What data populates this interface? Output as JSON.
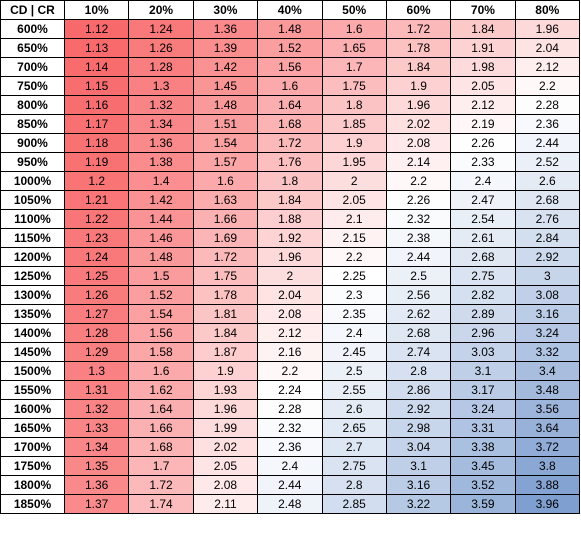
{
  "table": {
    "corner": "CD | CR",
    "columns": [
      "10%",
      "20%",
      "30%",
      "40%",
      "50%",
      "60%",
      "70%",
      "80%"
    ],
    "rows": [
      {
        "label": "600%",
        "values": [
          "1.12",
          "1.24",
          "1.36",
          "1.48",
          "1.6",
          "1.72",
          "1.84",
          "1.96"
        ]
      },
      {
        "label": "650%",
        "values": [
          "1.13",
          "1.26",
          "1.39",
          "1.52",
          "1.65",
          "1.78",
          "1.91",
          "2.04"
        ]
      },
      {
        "label": "700%",
        "values": [
          "1.14",
          "1.28",
          "1.42",
          "1.56",
          "1.7",
          "1.84",
          "1.98",
          "2.12"
        ]
      },
      {
        "label": "750%",
        "values": [
          "1.15",
          "1.3",
          "1.45",
          "1.6",
          "1.75",
          "1.9",
          "2.05",
          "2.2"
        ]
      },
      {
        "label": "800%",
        "values": [
          "1.16",
          "1.32",
          "1.48",
          "1.64",
          "1.8",
          "1.96",
          "2.12",
          "2.28"
        ]
      },
      {
        "label": "850%",
        "values": [
          "1.17",
          "1.34",
          "1.51",
          "1.68",
          "1.85",
          "2.02",
          "2.19",
          "2.36"
        ]
      },
      {
        "label": "900%",
        "values": [
          "1.18",
          "1.36",
          "1.54",
          "1.72",
          "1.9",
          "2.08",
          "2.26",
          "2.44"
        ]
      },
      {
        "label": "950%",
        "values": [
          "1.19",
          "1.38",
          "1.57",
          "1.76",
          "1.95",
          "2.14",
          "2.33",
          "2.52"
        ]
      },
      {
        "label": "1000%",
        "values": [
          "1.2",
          "1.4",
          "1.6",
          "1.8",
          "2",
          "2.2",
          "2.4",
          "2.6"
        ]
      },
      {
        "label": "1050%",
        "values": [
          "1.21",
          "1.42",
          "1.63",
          "1.84",
          "2.05",
          "2.26",
          "2.47",
          "2.68"
        ]
      },
      {
        "label": "1100%",
        "values": [
          "1.22",
          "1.44",
          "1.66",
          "1.88",
          "2.1",
          "2.32",
          "2.54",
          "2.76"
        ]
      },
      {
        "label": "1150%",
        "values": [
          "1.23",
          "1.46",
          "1.69",
          "1.92",
          "2.15",
          "2.38",
          "2.61",
          "2.84"
        ]
      },
      {
        "label": "1200%",
        "values": [
          "1.24",
          "1.48",
          "1.72",
          "1.96",
          "2.2",
          "2.44",
          "2.68",
          "2.92"
        ]
      },
      {
        "label": "1250%",
        "values": [
          "1.25",
          "1.5",
          "1.75",
          "2",
          "2.25",
          "2.5",
          "2.75",
          "3"
        ]
      },
      {
        "label": "1300%",
        "values": [
          "1.26",
          "1.52",
          "1.78",
          "2.04",
          "2.3",
          "2.56",
          "2.82",
          "3.08"
        ]
      },
      {
        "label": "1350%",
        "values": [
          "1.27",
          "1.54",
          "1.81",
          "2.08",
          "2.35",
          "2.62",
          "2.89",
          "3.16"
        ]
      },
      {
        "label": "1400%",
        "values": [
          "1.28",
          "1.56",
          "1.84",
          "2.12",
          "2.4",
          "2.68",
          "2.96",
          "3.24"
        ]
      },
      {
        "label": "1450%",
        "values": [
          "1.29",
          "1.58",
          "1.87",
          "2.16",
          "2.45",
          "2.74",
          "3.03",
          "3.32"
        ]
      },
      {
        "label": "1500%",
        "values": [
          "1.3",
          "1.6",
          "1.9",
          "2.2",
          "2.5",
          "2.8",
          "3.1",
          "3.4"
        ]
      },
      {
        "label": "1550%",
        "values": [
          "1.31",
          "1.62",
          "1.93",
          "2.24",
          "2.55",
          "2.86",
          "3.17",
          "3.48"
        ]
      },
      {
        "label": "1600%",
        "values": [
          "1.32",
          "1.64",
          "1.96",
          "2.28",
          "2.6",
          "2.92",
          "3.24",
          "3.56"
        ]
      },
      {
        "label": "1650%",
        "values": [
          "1.33",
          "1.66",
          "1.99",
          "2.32",
          "2.65",
          "2.98",
          "3.31",
          "3.64"
        ]
      },
      {
        "label": "1700%",
        "values": [
          "1.34",
          "1.68",
          "2.02",
          "2.36",
          "2.7",
          "3.04",
          "3.38",
          "3.72"
        ]
      },
      {
        "label": "1750%",
        "values": [
          "1.35",
          "1.7",
          "2.05",
          "2.4",
          "2.75",
          "3.1",
          "3.45",
          "3.8"
        ]
      },
      {
        "label": "1800%",
        "values": [
          "1.36",
          "1.72",
          "2.08",
          "2.44",
          "2.8",
          "3.16",
          "3.52",
          "3.88"
        ]
      },
      {
        "label": "1850%",
        "values": [
          "1.37",
          "1.74",
          "2.11",
          "2.48",
          "2.85",
          "3.22",
          "3.59",
          "3.96"
        ]
      }
    ]
  },
  "colors": {
    "low": "#f8696b",
    "mid": "#ffffff",
    "high": "#7f9fd0",
    "border": "#000000"
  }
}
